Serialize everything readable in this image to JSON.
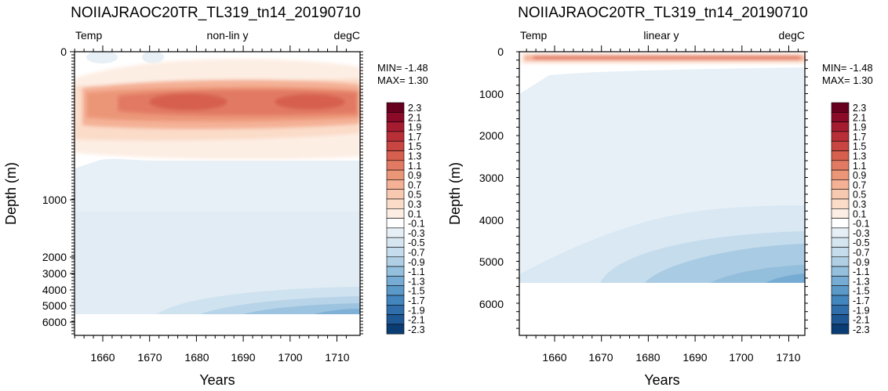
{
  "chart_data": [
    {
      "type": "heatmap",
      "title": "NOIIAJRAOC20TR_TL319_tn14_20190710",
      "header_left": "Temp",
      "header_center": "non-lin y",
      "header_right": "degC",
      "xlabel": "Years",
      "ylabel": "Depth (m)",
      "stats": {
        "min": "MIN= -1.48",
        "max": "MAX=  1.30"
      },
      "x_ticks": [
        1660,
        1670,
        1680,
        1690,
        1700,
        1710
      ],
      "xlim": [
        1652,
        1713
      ],
      "y_scale": "non-linear",
      "y_ticks": [
        "0",
        "1000",
        "2000",
        "3000",
        "4000",
        "5000",
        "6000"
      ],
      "ylim": [
        0,
        6500
      ],
      "field_description_values": {
        "surface_warm_layer_depth_range_m": [
          100,
          500
        ],
        "deep_cool_layer_depth_range_m": [
          4000,
          5500
        ],
        "bottom_depth_m": 5500
      }
    },
    {
      "type": "heatmap",
      "title": "NOIIAJRAOC20TR_TL319_tn14_20190710",
      "header_left": "Temp",
      "header_center": "linear y",
      "header_right": "degC",
      "xlabel": "Years",
      "ylabel": "Depth (m)",
      "stats": {
        "min": "MIN= -1.48",
        "max": "MAX=  1.30"
      },
      "x_ticks": [
        1660,
        1670,
        1680,
        1690,
        1700,
        1710
      ],
      "xlim": [
        1652,
        1713
      ],
      "y_scale": "linear",
      "y_ticks": [
        "0",
        "1000",
        "2000",
        "3000",
        "4000",
        "5000",
        "6000"
      ],
      "ylim": [
        0,
        6800
      ],
      "field_description_values": {
        "surface_warm_layer_depth_range_m": [
          0,
          150
        ],
        "deep_cool_layer_depth_range_m": [
          3700,
          5500
        ],
        "bottom_depth_m": 5500
      }
    }
  ],
  "colorbar": {
    "labels": [
      "2.3",
      "2.1",
      "1.9",
      "1.7",
      "1.5",
      "1.3",
      "1.1",
      "0.9",
      "0.7",
      "0.5",
      "0.3",
      "0.1",
      "-0.1",
      "-0.3",
      "-0.5",
      "-0.7",
      "-0.9",
      "-1.1",
      "-1.3",
      "-1.5",
      "-1.7",
      "-1.9",
      "-2.1",
      "-2.3"
    ],
    "colors": [
      "#67001f",
      "#8b0a28",
      "#a51c30",
      "#b92f38",
      "#c94541",
      "#d6604d",
      "#e27a63",
      "#ec9678",
      "#f4b196",
      "#f8c9b1",
      "#fbdcc9",
      "#fdeee4",
      "#ffffff",
      "#e6eff6",
      "#d6e6f1",
      "#c5dcec",
      "#b0cfe4",
      "#95c0dd",
      "#76acd3",
      "#5a99c8",
      "#4385bd",
      "#2f6eab",
      "#1d5794",
      "#0b3d75"
    ]
  }
}
